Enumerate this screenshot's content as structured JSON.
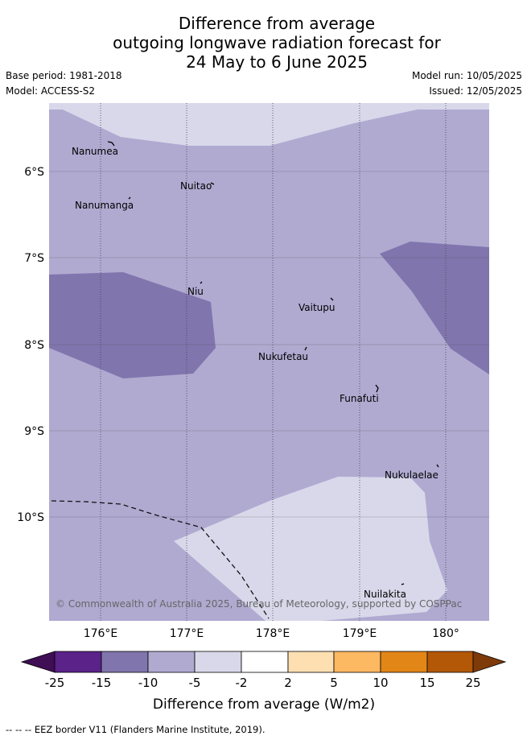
{
  "title": {
    "line1": "Difference from average",
    "line2": "outgoing longwave radiation forecast for",
    "line3": "24 May to 6 June 2025"
  },
  "meta": {
    "base_period": "Base period: 1981-2018",
    "model": "Model: ACCESS-S2",
    "model_run": "Model run: 10/05/2025",
    "issued": "Issued: 12/05/2025"
  },
  "map": {
    "lat_labels": [
      "6°S",
      "7°S",
      "8°S",
      "9°S",
      "10°S"
    ],
    "lon_labels": [
      "176°E",
      "177°E",
      "178°E",
      "179°E",
      "180°"
    ],
    "islands": [
      "Nanumea",
      "Nuitao",
      "Nanumanga",
      "Niu",
      "Vaitupu",
      "Nukufetau",
      "Funafuti",
      "Nukulaelae",
      "Nuilakita"
    ],
    "copyright": "© Commonwealth of Australia 2025, Bureau of Meteorology, supported by COSPPac",
    "colors": {
      "neg10_to_neg5": "#b0aad1",
      "neg15_to_neg10": "#8075ad",
      "neg5_to_neg2": "#d8d8ea"
    }
  },
  "colorbar": {
    "ticks": [
      "-25",
      "-15",
      "-10",
      "-5",
      "-2",
      "2",
      "5",
      "10",
      "15",
      "25"
    ],
    "label": "Difference from average (W/m2)",
    "colors": [
      "#3f0e55",
      "#5b2289",
      "#8075ad",
      "#b0aad1",
      "#d8d8ea",
      "#ffffff",
      "#fddfb1",
      "#fdb862",
      "#e28618",
      "#b35806",
      "#7f3a0a"
    ]
  },
  "footnote": "-- -- -- EEZ border V11 (Flanders Marine Institute, 2019)."
}
